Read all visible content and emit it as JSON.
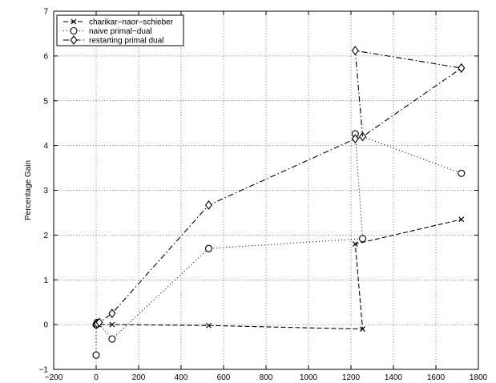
{
  "chart_data": {
    "type": "line",
    "title": "",
    "xlabel": "",
    "ylabel": "Percentage Gain",
    "xlim": [
      -200,
      1800
    ],
    "ylim": [
      -1,
      7
    ],
    "xticks": [
      -200,
      0,
      200,
      400,
      600,
      800,
      1000,
      1200,
      1400,
      1600,
      1800
    ],
    "yticks": [
      -1,
      0,
      1,
      2,
      3,
      4,
      5,
      6,
      7
    ],
    "grid": true,
    "legend_position": "top-left",
    "series": [
      {
        "name": "charikar−naor−schieber",
        "marker": "x",
        "dash": "6 3",
        "x": [
          0,
          5,
          10,
          75,
          530,
          1255,
          1220,
          1720
        ],
        "y": [
          0,
          0.05,
          0,
          0,
          -0.02,
          -0.1,
          1.8,
          2.35
        ]
      },
      {
        "name": "naive primal−dual",
        "marker": "o",
        "dash": "1 3",
        "x": [
          0,
          0,
          5,
          75,
          530,
          1255,
          1220,
          1720
        ],
        "y": [
          -0.68,
          0,
          0.05,
          -0.32,
          1.7,
          1.92,
          4.26,
          3.38
        ]
      },
      {
        "name": "restarting primal dual",
        "marker": "d",
        "dash": "7 3 1.5 3",
        "x": [
          0,
          5,
          15,
          75,
          530,
          1220,
          1255,
          1720
        ],
        "y": [
          0,
          0.02,
          0.05,
          0.25,
          2.67,
          4.15,
          4.2,
          5.73
        ]
      },
      {
        "name": "",
        "marker": "d",
        "dash": "7 3 1.5 3",
        "x": [
          1255,
          1220,
          1720
        ],
        "y": [
          4.2,
          6.12,
          5.73
        ],
        "hide_first_marker": true
      }
    ]
  }
}
